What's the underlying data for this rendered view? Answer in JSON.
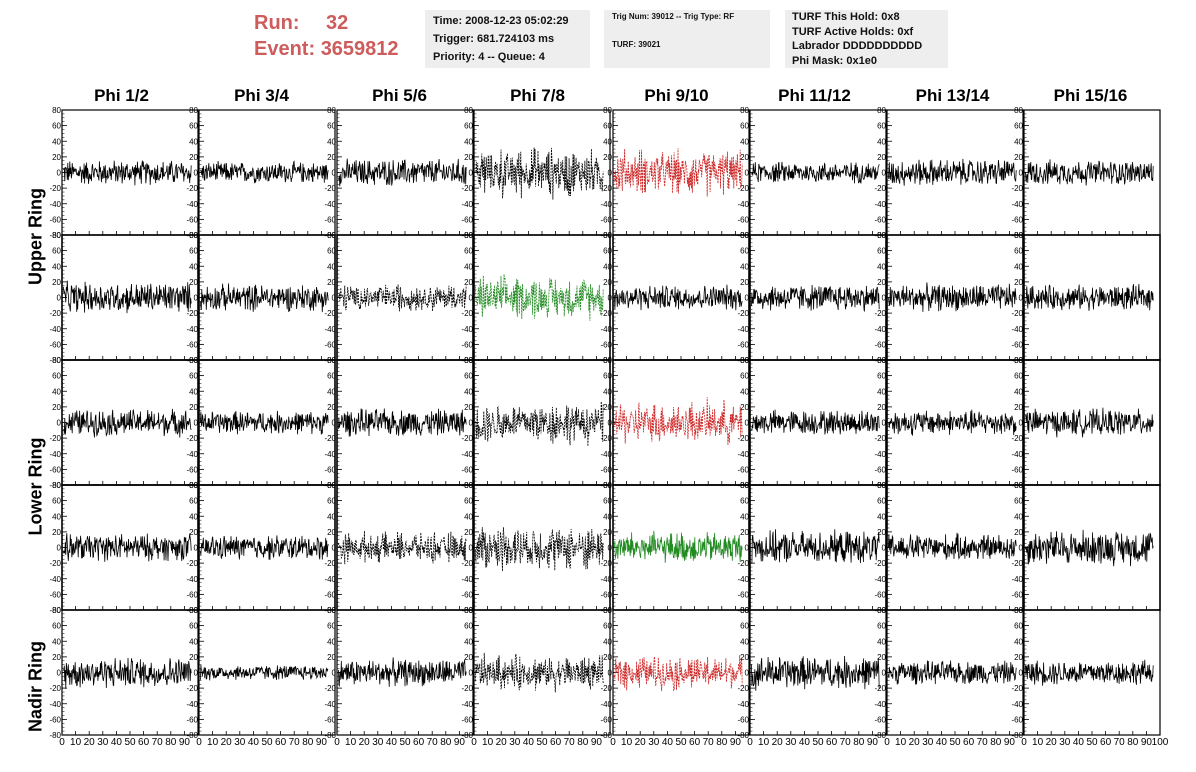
{
  "header": {
    "run_label": "Run:",
    "run_value": "32",
    "event_label": "Event:",
    "event_value": "3659812",
    "time": "Time: 2008-12-23 05:02:29",
    "trigger": "Trigger: 681.724103 ms",
    "priority": "Priority: 4 -- Queue: 4",
    "trig_num": "Trig Num: 39012 -- Trig Type: RF",
    "turf": "TURF: 39021",
    "turf_this_hold": "TURF This Hold: 0x8",
    "turf_active_holds": "TURF Active Holds: 0xf",
    "labrador": "Labrador DDDDDDDDDD",
    "phi_mask": "Phi Mask: 0x1e0"
  },
  "columns": [
    "Phi 1/2",
    "Phi 3/4",
    "Phi 5/6",
    "Phi 7/8",
    "Phi 9/10",
    "Phi 11/12",
    "Phi 13/14",
    "Phi 15/16"
  ],
  "row_labels": [
    "Upper Ring",
    "Lower Ring",
    "Nadir Ring"
  ],
  "colors": {
    "title_red": "#cd5c5c",
    "trace_black": "#000000",
    "trace_red": "#cc2222",
    "trace_green": "#228b22",
    "box_gray": "#eeeeee"
  },
  "chart_data": {
    "type": "line",
    "description_rows": [
      "Upper Ring 1",
      "Upper Ring 2",
      "Lower Ring 1",
      "Lower Ring 2",
      "Nadir Ring"
    ],
    "xlim": [
      0,
      100
    ],
    "ylim": [
      -80,
      80
    ],
    "x_ticks": [
      0,
      10,
      20,
      30,
      40,
      50,
      60,
      70,
      80,
      90,
      100
    ],
    "x_tick_labels": [
      "0",
      "10",
      "20",
      "30",
      "40",
      "50",
      "60",
      "70",
      "80",
      "90",
      "100"
    ],
    "y_ticks": [
      -80,
      -60,
      -40,
      -20,
      0,
      20,
      40,
      60,
      80
    ],
    "y_tick_labels": [
      "-80",
      "-60",
      "-40",
      "-20",
      "0",
      "20",
      "40",
      "60",
      "80"
    ],
    "panels": [
      [
        {
          "style": "solid",
          "color": "black",
          "amp": 13
        },
        {
          "style": "solid",
          "color": "black",
          "amp": 11
        },
        {
          "style": "solid",
          "color": "black",
          "amp": 14
        },
        {
          "style": "dashed",
          "color": "black",
          "amp": 28
        },
        {
          "style": "dashed",
          "color": "red",
          "amp": 26
        },
        {
          "style": "solid",
          "color": "black",
          "amp": 11
        },
        {
          "style": "solid",
          "color": "black",
          "amp": 14
        },
        {
          "style": "solid",
          "color": "black",
          "amp": 13
        }
      ],
      [
        {
          "style": "solid",
          "color": "black",
          "amp": 16
        },
        {
          "style": "solid",
          "color": "black",
          "amp": 14
        },
        {
          "style": "dashed",
          "color": "black",
          "amp": 16
        },
        {
          "style": "dashed",
          "color": "green",
          "amp": 24
        },
        {
          "style": "solid",
          "color": "black",
          "amp": 13
        },
        {
          "style": "solid",
          "color": "black",
          "amp": 14
        },
        {
          "style": "solid",
          "color": "black",
          "amp": 14
        },
        {
          "style": "solid",
          "color": "black",
          "amp": 13
        }
      ],
      [
        {
          "style": "solid",
          "color": "black",
          "amp": 14
        },
        {
          "style": "solid",
          "color": "black",
          "amp": 12
        },
        {
          "style": "solid",
          "color": "black",
          "amp": 14
        },
        {
          "style": "dashed",
          "color": "black",
          "amp": 24
        },
        {
          "style": "dashed",
          "color": "red",
          "amp": 24
        },
        {
          "style": "solid",
          "color": "black",
          "amp": 13
        },
        {
          "style": "solid",
          "color": "black",
          "amp": 13
        },
        {
          "style": "solid",
          "color": "black",
          "amp": 14
        }
      ],
      [
        {
          "style": "solid",
          "color": "black",
          "amp": 14
        },
        {
          "style": "solid",
          "color": "black",
          "amp": 13
        },
        {
          "style": "dashed",
          "color": "black",
          "amp": 17
        },
        {
          "style": "dashed",
          "color": "black",
          "amp": 26
        },
        {
          "style": "solid",
          "color": "green",
          "amp": 16
        },
        {
          "style": "solid",
          "color": "black",
          "amp": 17
        },
        {
          "style": "solid",
          "color": "black",
          "amp": 14
        },
        {
          "style": "solid",
          "color": "black",
          "amp": 18
        }
      ],
      [
        {
          "style": "solid",
          "color": "black",
          "amp": 16
        },
        {
          "style": "solid",
          "color": "black",
          "amp": 8
        },
        {
          "style": "solid",
          "color": "black",
          "amp": 14
        },
        {
          "style": "dashed",
          "color": "black",
          "amp": 20
        },
        {
          "style": "dashed",
          "color": "red",
          "amp": 20
        },
        {
          "style": "solid",
          "color": "black",
          "amp": 17
        },
        {
          "style": "solid",
          "color": "black",
          "amp": 12
        },
        {
          "style": "solid",
          "color": "black",
          "amp": 13
        }
      ]
    ]
  }
}
